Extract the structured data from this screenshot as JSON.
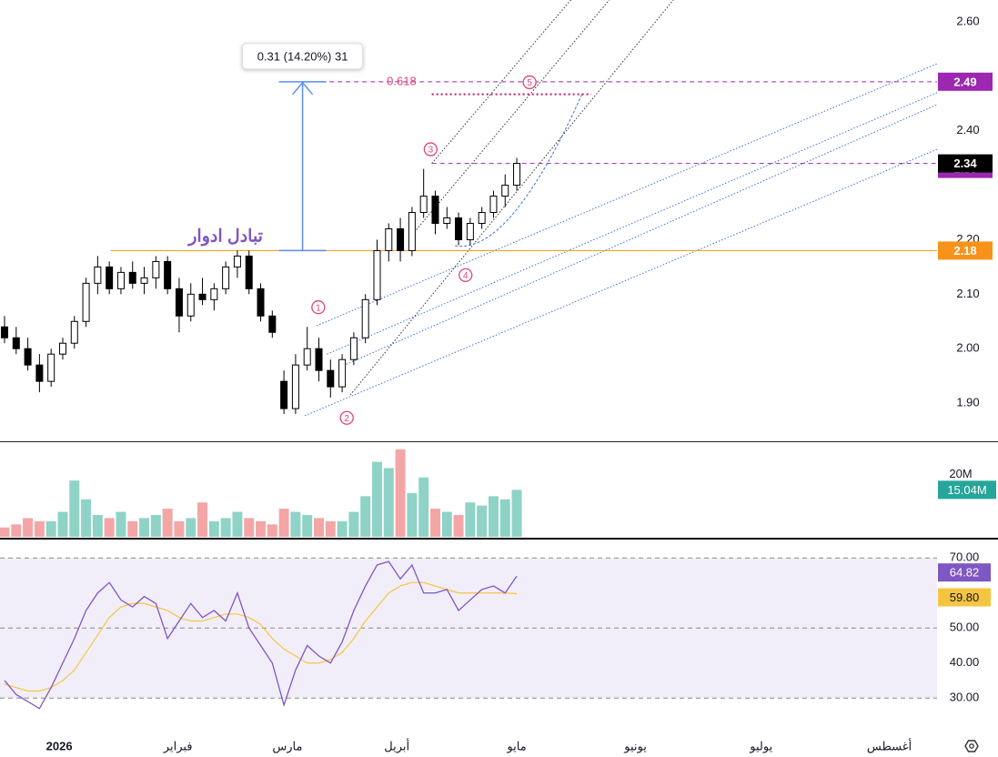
{
  "chart_data": {
    "type": "candlestick",
    "xlim": [
      -0.39,
      80.1
    ],
    "xticks": [
      {
        "value": 4.7,
        "label": "2026"
      },
      {
        "value": 14.9,
        "label": "فبراير"
      },
      {
        "value": 24.3,
        "label": "مارس"
      },
      {
        "value": 33.7,
        "label": "أبريل"
      },
      {
        "value": 44,
        "label": "مايو"
      },
      {
        "value": 54.2,
        "label": "يونيو"
      },
      {
        "value": 65,
        "label": "يوليو"
      },
      {
        "value": 76,
        "label": "أغسطس"
      }
    ],
    "ylim": [
      1.83,
      2.64
    ],
    "yticks": [
      {
        "value": 2.6,
        "label": "2.60"
      },
      {
        "value": 2.4,
        "label": "2.40"
      },
      {
        "value": 2.2,
        "label": "2.20"
      },
      {
        "value": 2.1,
        "label": "2.10"
      },
      {
        "value": 2.0,
        "label": "2.00"
      },
      {
        "value": 1.9,
        "label": "1.90"
      }
    ],
    "up_color": "#ffffff",
    "down_color": "#000000",
    "open": [
      2.04,
      2.02,
      2.0,
      1.97,
      1.94,
      1.99,
      2.01,
      2.05,
      2.12,
      2.15,
      2.11,
      2.14,
      2.12,
      2.13,
      2.16,
      2.11,
      2.06,
      2.1,
      2.09,
      2.11,
      2.15,
      2.17,
      2.11,
      2.06,
      1.94,
      1.89,
      1.97,
      2.0,
      1.96,
      1.93,
      1.98,
      2.02,
      2.09,
      2.18,
      2.22,
      2.18,
      2.25,
      2.28,
      2.23,
      2.24,
      2.2,
      2.23,
      2.25,
      2.28,
      2.3
    ],
    "high": [
      2.06,
      2.04,
      2.02,
      1.99,
      2.0,
      2.02,
      2.06,
      2.13,
      2.17,
      2.16,
      2.15,
      2.16,
      2.15,
      2.17,
      2.17,
      2.13,
      2.12,
      2.13,
      2.12,
      2.16,
      2.18,
      2.18,
      2.12,
      2.07,
      1.96,
      1.99,
      2.04,
      2.02,
      1.98,
      1.99,
      2.03,
      2.1,
      2.2,
      2.23,
      2.24,
      2.26,
      2.33,
      2.29,
      2.26,
      2.25,
      2.24,
      2.26,
      2.29,
      2.32,
      2.35
    ],
    "low": [
      2.01,
      1.99,
      1.96,
      1.92,
      1.93,
      1.98,
      2.0,
      2.04,
      2.1,
      2.1,
      2.1,
      2.11,
      2.1,
      2.11,
      2.1,
      2.03,
      2.05,
      2.08,
      2.07,
      2.1,
      2.13,
      2.1,
      2.05,
      2.02,
      1.88,
      1.88,
      1.96,
      1.94,
      1.91,
      1.92,
      1.97,
      2.01,
      2.08,
      2.16,
      2.16,
      2.17,
      2.24,
      2.21,
      2.22,
      2.19,
      2.19,
      2.22,
      2.24,
      2.26,
      2.29
    ],
    "close": [
      2.02,
      2.0,
      1.97,
      1.94,
      1.99,
      2.01,
      2.05,
      2.12,
      2.15,
      2.11,
      2.14,
      2.12,
      2.13,
      2.16,
      2.11,
      2.06,
      2.1,
      2.09,
      2.11,
      2.15,
      2.17,
      2.11,
      2.06,
      2.03,
      1.89,
      1.97,
      2.0,
      1.96,
      1.93,
      1.98,
      2.02,
      2.09,
      2.18,
      2.22,
      2.18,
      2.25,
      2.28,
      2.23,
      2.24,
      2.2,
      2.23,
      2.25,
      2.28,
      2.3,
      2.34
    ],
    "price_markers": [
      {
        "value": 2.49,
        "color": "#9c27b0"
      },
      {
        "value": 2.33,
        "color": "#9c27b0"
      },
      {
        "value": 2.18,
        "color": "#f7931a"
      }
    ],
    "last_color": "#000000",
    "support": {
      "value": 2.18,
      "from": 9.1,
      "color": "#f7a21b"
    },
    "levels": [
      {
        "value": 2.49,
        "from": 25.8,
        "label": "0.618",
        "color": "#9c27b0"
      },
      {
        "value": 2.34,
        "from": 36.7,
        "color": "#9c27b0"
      }
    ],
    "target": {
      "value": 2.467,
      "from": 36.7,
      "to": 50.4,
      "color": "#c2185b"
    },
    "measure": {
      "x": 25.6,
      "from": 2.18,
      "to": 2.49,
      "label": "0.31 (14.20%) 31",
      "color": "#5b8def"
    },
    "note": {
      "text": "تبادل ادوار",
      "x": 19,
      "y": 2.205,
      "color": "#7e57c2"
    },
    "waves": [
      {
        "label": "1",
        "x": 26.95,
        "y": 2.076
      },
      {
        "label": "2",
        "x": 29.4,
        "y": 1.873
      },
      {
        "label": "3",
        "x": 36.6,
        "y": 2.366
      },
      {
        "label": "4",
        "x": 39.6,
        "y": 2.135
      },
      {
        "label": "5",
        "x": 45.1,
        "y": 2.489
      }
    ],
    "channel_lines": [
      [
        26.8,
        2.042,
        80.1,
        2.523
      ],
      [
        25.8,
        1.877,
        80.1,
        2.366
      ],
      [
        27.7,
        1.99,
        80.1,
        2.47
      ],
      [
        29.1,
        1.969,
        80.1,
        2.448
      ]
    ],
    "fan_lines": [
      [
        29.7,
        1.915,
        57.6,
        2.644
      ],
      [
        35.2,
        2.214,
        52.1,
        2.644
      ],
      [
        36.7,
        2.34,
        48.8,
        2.644
      ]
    ],
    "curve": [
      38.7,
      2.189,
      43.4,
      2.172,
      49.6,
      2.467
    ],
    "volume": {
      "ylim": [
        0,
        30
      ],
      "yticks": [
        {
          "value": 20,
          "label": "20M"
        }
      ],
      "up_color": "#8fd3c7",
      "down_color": "#f4a6a6",
      "label_color": "#26a69a",
      "values": [
        3,
        4,
        6,
        5,
        5,
        8,
        18,
        12,
        7,
        6,
        8,
        5,
        6,
        7,
        9,
        5,
        6,
        11,
        5,
        6,
        8,
        6,
        5,
        4,
        9,
        8,
        7,
        6,
        5,
        5,
        8,
        13,
        24,
        22,
        28,
        14,
        19,
        9,
        8,
        7,
        11,
        10,
        13,
        12,
        15.04
      ],
      "value_labels": [
        null,
        null,
        null,
        null,
        null,
        null,
        null,
        null,
        null,
        null,
        null,
        null,
        null,
        null,
        null,
        null,
        null,
        null,
        null,
        null,
        null,
        null,
        null,
        null,
        null,
        null,
        null,
        null,
        null,
        null,
        null,
        null,
        null,
        null,
        null,
        null,
        null,
        null,
        null,
        null,
        null,
        null,
        null,
        null,
        "15.04M"
      ]
    },
    "rsi": {
      "ylim": [
        22,
        75
      ],
      "yticks": [
        {
          "value": 70,
          "label": "70.00"
        },
        {
          "value": 50,
          "label": "50.00"
        },
        {
          "value": 40,
          "label": "40.00"
        },
        {
          "value": 30,
          "label": "30.00"
        }
      ],
      "levels": [
        70,
        50,
        30
      ],
      "band": [
        30,
        70
      ],
      "series": [
        {
          "color": "#7e57c2",
          "values": [
            35,
            31,
            29,
            27,
            33,
            40,
            47,
            55,
            60,
            63,
            58,
            56,
            59,
            57,
            47,
            52,
            57,
            53,
            55,
            52,
            60,
            50,
            45,
            40,
            28,
            38,
            45,
            42,
            40,
            46,
            55,
            62,
            68,
            69,
            64,
            68,
            60,
            60,
            61,
            55,
            58,
            61,
            62,
            60,
            64.82
          ],
          "value_labels": [
            null,
            null,
            null,
            null,
            null,
            null,
            null,
            null,
            null,
            null,
            null,
            null,
            null,
            null,
            null,
            null,
            null,
            null,
            null,
            null,
            null,
            null,
            null,
            null,
            null,
            null,
            null,
            null,
            null,
            null,
            null,
            null,
            null,
            null,
            null,
            null,
            null,
            null,
            null,
            null,
            null,
            null,
            null,
            null,
            "64.82"
          ]
        },
        {
          "color": "#f5c542",
          "values": [
            34,
            33,
            32,
            32,
            33,
            35,
            38,
            43,
            48,
            53,
            56,
            57,
            57,
            56,
            55,
            53,
            52,
            52,
            53,
            54,
            54,
            53,
            51,
            47,
            44,
            42,
            40,
            40,
            41,
            43,
            47,
            52,
            56,
            60,
            62,
            63,
            63,
            62,
            61,
            60,
            60,
            60,
            60,
            60,
            59.8
          ],
          "value_labels": [
            null,
            null,
            null,
            null,
            null,
            null,
            null,
            null,
            null,
            null,
            null,
            null,
            null,
            null,
            null,
            null,
            null,
            null,
            null,
            null,
            null,
            null,
            null,
            null,
            null,
            null,
            null,
            null,
            null,
            null,
            null,
            null,
            null,
            null,
            null,
            null,
            null,
            null,
            null,
            null,
            null,
            null,
            null,
            null,
            "59.80"
          ]
        }
      ]
    }
  }
}
